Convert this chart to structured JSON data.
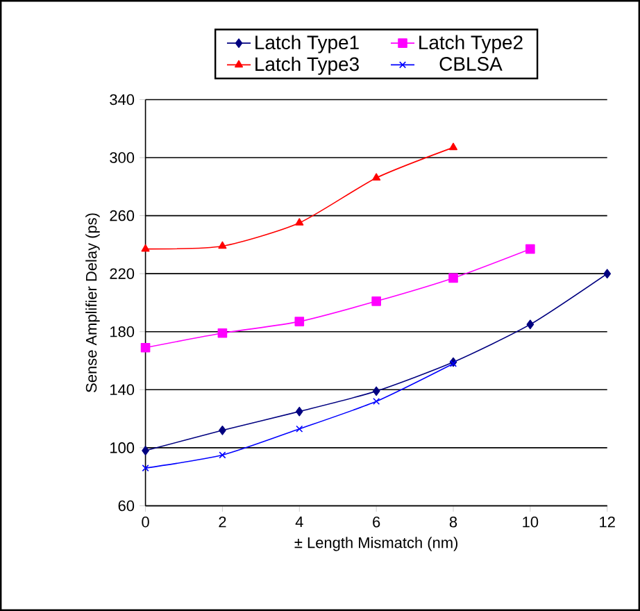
{
  "chart_data": {
    "type": "line",
    "xlabel": "± Length Mismatch  (nm)",
    "ylabel": "Sense Amplifier Delay (ps)",
    "xlim": [
      0,
      12
    ],
    "xticks": [
      0,
      2,
      4,
      6,
      8,
      10,
      12
    ],
    "ylim": [
      60,
      340
    ],
    "yticks": [
      60,
      100,
      140,
      180,
      220,
      260,
      300,
      340
    ],
    "grid": "y",
    "legend": "top",
    "series": [
      {
        "name": "Latch Type1",
        "color": "#000080",
        "marker": "diamond",
        "x": [
          0,
          2,
          4,
          6,
          8,
          10,
          12
        ],
        "values": [
          98,
          112,
          125,
          139,
          159,
          185,
          220
        ]
      },
      {
        "name": "Latch Type2",
        "color": "#ff00ff",
        "marker": "square",
        "x": [
          0,
          2,
          4,
          6,
          8,
          10
        ],
        "values": [
          169,
          179,
          187,
          201,
          217,
          237
        ]
      },
      {
        "name": "Latch Type3",
        "color": "#ff0000",
        "marker": "triangle",
        "x": [
          0,
          2,
          4,
          6,
          8
        ],
        "values": [
          237,
          239,
          255,
          286,
          307
        ]
      },
      {
        "name": "CBLSA",
        "color": "#0000ff",
        "marker": "cross",
        "x": [
          0,
          2,
          4,
          6,
          8
        ],
        "values": [
          86,
          95,
          113,
          132,
          158
        ]
      }
    ]
  }
}
